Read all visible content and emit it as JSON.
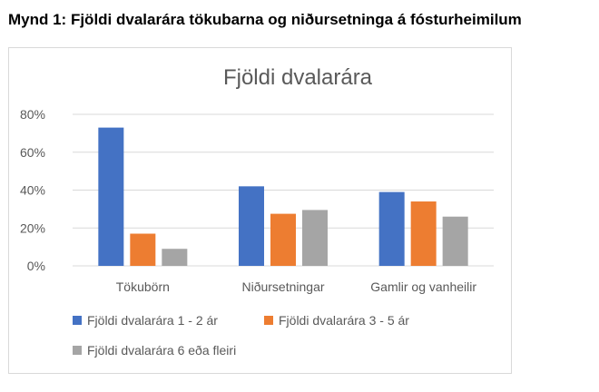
{
  "document": {
    "heading": "Mynd 1: Fjöldi dvalarára tökubarna og niðursetninga á fósturheimilum"
  },
  "chart_data": {
    "type": "bar",
    "title": "Fjöldi dvalarára",
    "xlabel": "",
    "ylabel": "",
    "categories": [
      "Tökubörn",
      "Niðursetningar",
      "Gamlir og vanheilir"
    ],
    "series": [
      {
        "name": "Fjöldi dvalarára 1 - 2 ár",
        "color": "#4472c4",
        "values": [
          73,
          42,
          39
        ]
      },
      {
        "name": "Fjöldi dvalarára 3 - 5 ár",
        "color": "#ed7d31",
        "values": [
          17,
          27.5,
          34
        ]
      },
      {
        "name": "Fjöldi dvalarára 6 eða fleiri",
        "color": "#a5a5a5",
        "values": [
          9,
          29.5,
          26
        ]
      }
    ],
    "ylim": [
      0,
      80
    ],
    "y_ticks": [
      "0%",
      "20%",
      "40%",
      "60%",
      "80%"
    ],
    "y_tick_values": [
      0,
      20,
      40,
      60,
      80
    ],
    "grid": true,
    "legend_position": "bottom",
    "gridline_color": "#d9d9d9",
    "text_color": "#595959"
  }
}
